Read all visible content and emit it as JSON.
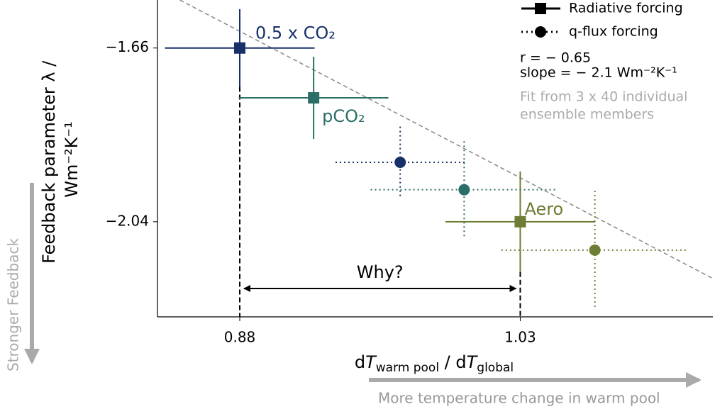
{
  "chart_data": {
    "type": "scatter",
    "y_label": [
      "Feedback parameter λ /",
      "Wm⁻²K⁻¹"
    ],
    "x_label": [
      "d",
      "T",
      "warm pool",
      " / d",
      "T",
      "global"
    ],
    "xlim": [
      0.836,
      1.133
    ],
    "ylim": [
      -2.248,
      -1.555
    ],
    "xticks": [
      0.88,
      1.03
    ],
    "yticks": [
      {
        "value": -1.66,
        "label": "−1.66"
      },
      {
        "value": -2.04,
        "label": "−2.04"
      }
    ],
    "series": [
      {
        "name": "Radiative forcing",
        "marker": "square",
        "line": "solid",
        "x": [
          0.88,
          0.9195,
          1.03
        ],
        "values": [
          -1.66,
          -1.769,
          -2.04
        ],
        "xerr": [
          0.04,
          0.04,
          0.04
        ],
        "yerr": [
          0.085,
          0.09,
          0.11
        ],
        "colors": [
          "#17306a",
          "#2b6e66",
          "#6e7d35"
        ],
        "point_labels": [
          "0.5 x CO₂",
          "pCO₂",
          "Aero"
        ]
      },
      {
        "name": "q-flux forcing",
        "marker": "circle",
        "line": "dotted",
        "x": [
          0.9658,
          1.0,
          1.0699
        ],
        "values": [
          -1.91,
          -1.97,
          -2.102
        ],
        "xerr": [
          0.0346,
          0.05,
          0.05
        ],
        "yerr": [
          0.078,
          0.106,
          0.13
        ],
        "colors": [
          "#17306a",
          "#2b6e66",
          "#6e7d35"
        ]
      }
    ],
    "fit_line": {
      "x": [
        0.848,
        1.133
      ],
      "y": [
        -1.555,
        -2.164
      ]
    },
    "annotations": [
      "r = − 0.65",
      "slope = − 2.1 Wm⁻²K⁻¹",
      "Fit from 3 x 40 individual",
      "ensemble members"
    ],
    "question": "Why?",
    "side_note": "Stronger Feedback",
    "bottom_note": "More temperature change in warm pool"
  }
}
